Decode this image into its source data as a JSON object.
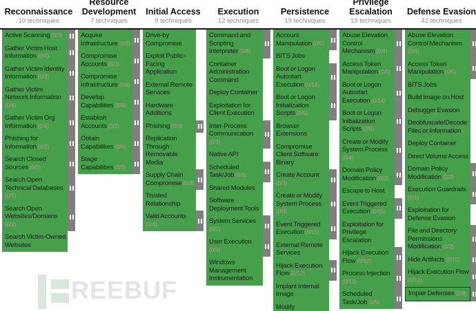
{
  "colors": {
    "cell-green": "#46a04b",
    "bar-gray": "#7f7f7f",
    "count-red": "#c49494",
    "divider": "#1a1a1a",
    "header-count": "#8a8a8a",
    "select-border": "#2b2b2b",
    "wm-green": "#d9e7da",
    "wm-text": "#e4e4e4"
  },
  "watermark": {
    "text": "REEBUF",
    "icon": "freebuf-logo-icon"
  },
  "matrix": {
    "tactics": [
      {
        "name": "Reconnaissance",
        "count": "10 techniques",
        "techniques": [
          {
            "name": "Active Scanning",
            "count": "(0/3)"
          },
          {
            "name": "Gather Victim Host Information",
            "count": "(0/4)"
          },
          {
            "name": "Gather Victim Identity Information",
            "count": "(0/3)"
          },
          {
            "name": "Gather Victim Network Information",
            "count": "(0/6)"
          },
          {
            "name": "Gather Victim Org Information",
            "count": "(0/4)"
          },
          {
            "name": "Phishing for Information",
            "count": "(0/3)"
          },
          {
            "name": "Search Closed Sources",
            "count": "(0/2)"
          },
          {
            "name": "Search Open Technical Databases",
            "count": "(0/5)"
          },
          {
            "name": "Search Open Websites/Domains",
            "count": "(0/2)"
          },
          {
            "name": "Search Victim-Owned Websites",
            "count": ""
          }
        ]
      },
      {
        "name": "Resource Development",
        "count": "7 techniques",
        "techniques": [
          {
            "name": "Acquire Infrastructure",
            "count": "(0/6)"
          },
          {
            "name": "Compromise Accounts",
            "count": "(0/2)"
          },
          {
            "name": "Compromise Infrastructure",
            "count": "(0/6)"
          },
          {
            "name": "Develop Capabilities",
            "count": "(0/4)"
          },
          {
            "name": "Establish Accounts",
            "count": "(0/2)"
          },
          {
            "name": "Obtain Capabilities",
            "count": "(0/6)"
          },
          {
            "name": "Stage Capabilities",
            "count": "(0/5)"
          }
        ]
      },
      {
        "name": "Initial Access",
        "count": "9 techniques",
        "techniques": [
          {
            "name": "Drive-by Compromise",
            "count": ""
          },
          {
            "name": "Exploit Public-Facing Application",
            "count": ""
          },
          {
            "name": "External Remote Services",
            "count": ""
          },
          {
            "name": "Hardware Additions",
            "count": ""
          },
          {
            "name": "Phishing",
            "count": "(0/3)"
          },
          {
            "name": "Replication Through Removable Media",
            "count": ""
          },
          {
            "name": "Supply Chain Compromise",
            "count": "(0/3)"
          },
          {
            "name": "Trusted Relationship",
            "count": ""
          },
          {
            "name": "Valid Accounts",
            "count": "(0/4)"
          }
        ]
      },
      {
        "name": "Execution",
        "count": "12 techniques",
        "techniques": [
          {
            "name": "Command and Scripting Interpreter",
            "count": "(0/8)"
          },
          {
            "name": "Container Administration Command",
            "count": ""
          },
          {
            "name": "Deploy Container",
            "count": ""
          },
          {
            "name": "Exploitation for Client Execution",
            "count": ""
          },
          {
            "name": "Inter-Process Communication",
            "count": "(0/3)"
          },
          {
            "name": "Native API",
            "count": ""
          },
          {
            "name": "Scheduled Task/Job",
            "count": "(0/5)"
          },
          {
            "name": "Shared Modules",
            "count": ""
          },
          {
            "name": "Software Deployment Tools",
            "count": ""
          },
          {
            "name": "System Services",
            "count": "(0/2)"
          },
          {
            "name": "User Execution",
            "count": "(0/3)"
          },
          {
            "name": "Windows Management Instrumentation",
            "count": ""
          }
        ]
      },
      {
        "name": "Persistence",
        "count": "19 techniques",
        "techniques": [
          {
            "name": "Account Manipulation",
            "count": "(0/5)"
          },
          {
            "name": "BITS Jobs",
            "count": ""
          },
          {
            "name": "Boot or Logon Autostart Execution",
            "count": "(0/14)"
          },
          {
            "name": "Boot or Logon Initialization Scripts",
            "count": "(0/5)"
          },
          {
            "name": "Browser Extensions",
            "count": ""
          },
          {
            "name": "Compromise Client Software Binary",
            "count": ""
          },
          {
            "name": "Create Account",
            "count": "(0/3)"
          },
          {
            "name": "Create or Modify System Process",
            "count": "(0/4)"
          },
          {
            "name": "Event Triggered Execution",
            "count": "(0/15)"
          },
          {
            "name": "External Remote Services",
            "count": ""
          },
          {
            "name": "Hijack Execution Flow",
            "count": "(0/12)"
          },
          {
            "name": "Implant Internal Image",
            "count": ""
          },
          {
            "name": "Modify",
            "count": ""
          }
        ]
      },
      {
        "name": "Privilege Escalation",
        "count": "13 techniques",
        "techniques": [
          {
            "name": "Abuse Elevation Control Mechanism",
            "count": "(0/4)"
          },
          {
            "name": "Access Token Manipulation",
            "count": "(0/5)"
          },
          {
            "name": "Boot or Logon Autostart Execution",
            "count": "(0/14)"
          },
          {
            "name": "Boot or Logon Initialization Scripts",
            "count": "(0/5)"
          },
          {
            "name": "Create or Modify System Process",
            "count": "(0/4)"
          },
          {
            "name": "Domain Policy Modification",
            "count": "(0/2)"
          },
          {
            "name": "Escape to Host",
            "count": ""
          },
          {
            "name": "Event Triggered Execution",
            "count": "(0/15)"
          },
          {
            "name": "Exploitation for Privilege Escalation",
            "count": ""
          },
          {
            "name": "Hijack Execution Flow",
            "count": "(0/12)"
          },
          {
            "name": "Process Injection",
            "count": "(0/12)"
          },
          {
            "name": "Scheduled Task/Job",
            "count": "(0/5)"
          }
        ]
      },
      {
        "name": "Defense Evasion",
        "count": "42 techniques",
        "techniques": [
          {
            "name": "Abuse Elevation Control Mechanism",
            "count": "(0/4)"
          },
          {
            "name": "Access Token Manipulation",
            "count": "(0/5)"
          },
          {
            "name": "BITS Jobs",
            "count": ""
          },
          {
            "name": "Build Image on Host",
            "count": ""
          },
          {
            "name": "Debugger Evasion",
            "count": ""
          },
          {
            "name": "Deobfuscate/Decode Files or Information",
            "count": ""
          },
          {
            "name": "Deploy Container",
            "count": ""
          },
          {
            "name": "Direct Volume Access",
            "count": ""
          },
          {
            "name": "Domain Policy Modification",
            "count": "(0/2)"
          },
          {
            "name": "Execution Guardrails",
            "count": "(0/1)"
          },
          {
            "name": "Exploitation for Defense Evasion",
            "count": ""
          },
          {
            "name": "File and Directory Permissions Modification",
            "count": "(0/2)"
          },
          {
            "name": "Hide Artifacts",
            "count": "(0/10)"
          },
          {
            "name": "Hijack Execution Flow",
            "count": "(0/12)"
          },
          {
            "name": "Impair Defenses",
            "count": "(0/9)",
            "selected": true
          }
        ]
      }
    ]
  }
}
